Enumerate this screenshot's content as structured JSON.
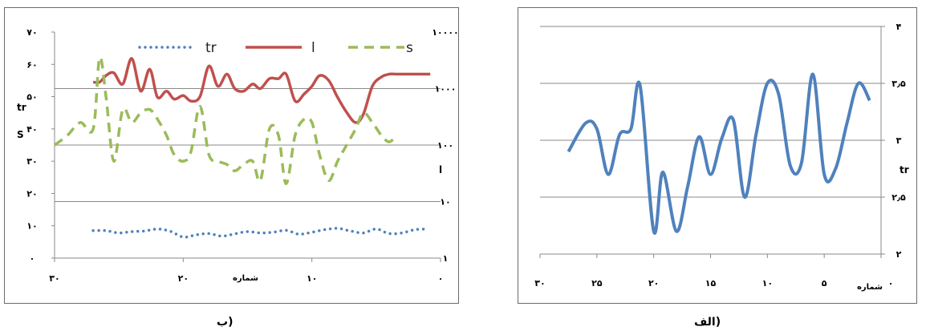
{
  "captions": {
    "b": "ب)",
    "a": "الف)"
  },
  "chart_data": [
    {
      "panel": "b",
      "type": "line",
      "x_axis": {
        "label": "شماره",
        "range": [
          30,
          0
        ],
        "ticks": [
          "۳۰",
          "۲۰",
          "۱۰",
          "۰"
        ],
        "tick_values": [
          30,
          20,
          10,
          0
        ]
      },
      "left_axis": {
        "label_top": "tr",
        "label_bottom": "S",
        "range": [
          0,
          70
        ],
        "ticks": [
          "۰",
          "۱۰",
          "۲۰",
          "۳۰",
          "۴۰",
          "۵۰",
          "۶۰",
          "۷۰"
        ],
        "tick_values": [
          0,
          10,
          20,
          30,
          40,
          50,
          60,
          70
        ]
      },
      "right_axis": {
        "label": "l",
        "scale": "log",
        "range": [
          1,
          10000
        ],
        "ticks": [
          "۱",
          "۱۰",
          "۱۰۰",
          "۱۰۰۰",
          "۱۰۰۰۰"
        ],
        "tick_values": [
          1,
          10,
          100,
          1000,
          10000
        ]
      },
      "legend": {
        "position": "top",
        "entries": [
          "tr",
          "l",
          "s"
        ]
      },
      "series": [
        {
          "name": "tr",
          "axis": "left",
          "color": "#4f81bd",
          "style": "dotted",
          "x": [
            27,
            26,
            25,
            24,
            23,
            22,
            21,
            20,
            19,
            18,
            17,
            16,
            15,
            14,
            13,
            12,
            11,
            10,
            9,
            8,
            7,
            6,
            5,
            4,
            3,
            2,
            1
          ],
          "y": [
            8.5,
            8.5,
            7.8,
            8.2,
            8.4,
            9.0,
            8.3,
            6.5,
            7.2,
            7.6,
            6.8,
            7.5,
            8.2,
            7.8,
            8.0,
            8.6,
            7.4,
            8.0,
            8.8,
            9.2,
            8.4,
            7.8,
            9.0,
            7.6,
            7.8,
            8.8,
            9.0
          ]
        },
        {
          "name": "l",
          "axis": "right",
          "color": "#c0504d",
          "style": "solid",
          "x": [
            27,
            26.5,
            26,
            25.4,
            24.7,
            24,
            23.3,
            22.6,
            22,
            21.3,
            20.7,
            20,
            19.4,
            18.7,
            18,
            17.3,
            16.6,
            16,
            15.3,
            14.6,
            14,
            13.3,
            12.6,
            12,
            11.3,
            10.6,
            10,
            9.4,
            8.7,
            8,
            7.3,
            6.6,
            6,
            5.3,
            4.6,
            4,
            3.4,
            2.8,
            2.3,
            1.8,
            1.3,
            0.8
          ],
          "y": [
            1300,
            1300,
            1700,
            1900,
            1200,
            3400,
            900,
            2200,
            700,
            900,
            650,
            750,
            600,
            720,
            2500,
            1100,
            1800,
            1000,
            900,
            1200,
            1000,
            1500,
            1500,
            1800,
            600,
            800,
            1100,
            1700,
            1400,
            700,
            380,
            250,
            350,
            1100,
            1600,
            1800,
            1800,
            1800,
            1800,
            1800,
            1800,
            1800
          ]
        },
        {
          "name": "s",
          "axis": "left",
          "color": "#9bbb59",
          "style": "dashed",
          "x": [
            30,
            29,
            28,
            27,
            26.5,
            26,
            25.4,
            24.7,
            24,
            23.3,
            22.6,
            22,
            21.3,
            20.7,
            20,
            19.4,
            18.7,
            18,
            17.3,
            16.6,
            16,
            15.3,
            14.6,
            14,
            13.3,
            12.6,
            12,
            11.3,
            10.6,
            10,
            9.4,
            8.7,
            8,
            7.3,
            6.6,
            6,
            5.3,
            4.6,
            4,
            3.4
          ],
          "y": [
            35,
            38,
            42,
            40,
            62,
            50,
            30,
            46,
            42,
            45,
            46,
            43,
            38,
            32,
            30,
            33,
            47,
            32,
            30,
            29,
            27,
            29,
            30,
            24,
            40,
            38,
            23,
            38,
            43,
            42,
            32,
            24,
            30,
            35,
            40,
            45,
            42,
            38,
            36,
            38
          ]
        }
      ]
    },
    {
      "panel": "a",
      "type": "line",
      "x_axis": {
        "label": "شماره",
        "range": [
          30,
          0
        ],
        "ticks": [
          "۳۰",
          "۲۵",
          "۲۰",
          "۱۵",
          "۱۰",
          "۵",
          "۰"
        ],
        "tick_values": [
          30,
          25,
          20,
          15,
          10,
          5,
          0
        ]
      },
      "y_axis": {
        "label": "tr",
        "position": "right",
        "range": [
          2,
          4
        ],
        "ticks": [
          "۲",
          "۲٫۵",
          "۳",
          "۳٫۵",
          "۴"
        ],
        "tick_values": [
          2,
          2.5,
          3,
          3.5,
          4
        ]
      },
      "series": [
        {
          "name": "tr",
          "color": "#4f81bd",
          "style": "solid",
          "x": [
            27.5,
            26,
            25,
            24,
            23,
            22,
            21.2,
            20,
            19.2,
            18,
            17,
            16,
            15,
            14,
            13,
            12,
            11,
            10,
            9,
            8,
            7,
            6,
            5,
            4,
            3,
            2,
            1
          ],
          "y": [
            2.9,
            3.15,
            3.1,
            2.7,
            3.05,
            3.1,
            3.48,
            2.2,
            2.72,
            2.2,
            2.6,
            3.03,
            2.7,
            3.02,
            3.18,
            2.5,
            3.05,
            3.5,
            3.4,
            2.78,
            2.8,
            3.58,
            2.7,
            2.75,
            3.15,
            3.5,
            3.35
          ]
        }
      ]
    }
  ]
}
